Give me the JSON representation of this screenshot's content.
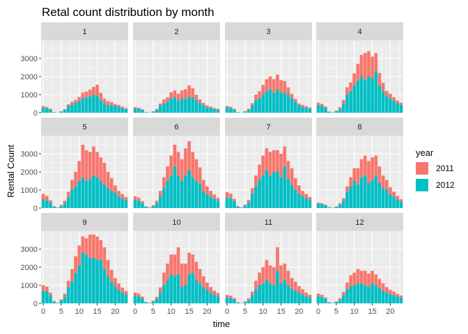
{
  "chart_data": {
    "type": "bar",
    "stacked": true,
    "title": "Retal count distribution by month",
    "xlabel": "time",
    "ylabel": "Rental Count",
    "x_range": [
      -0.6,
      23.6
    ],
    "ylim": [
      0,
      4000
    ],
    "x_ticks": [
      0,
      5,
      10,
      15,
      20
    ],
    "y_ticks": [
      0,
      1000,
      2000,
      3000
    ],
    "grid": true,
    "legend": {
      "title": "year",
      "position": "right"
    },
    "colors": {
      "2011": "#F8766D",
      "2012": "#00BFC4",
      "panel_bg": "#EBEBEB",
      "strip_bg": "#D9D9D9"
    },
    "facets": [
      {
        "label": "1",
        "hours": [
          0,
          1,
          2,
          3,
          4,
          5,
          6,
          7,
          8,
          9,
          10,
          11,
          12,
          13,
          14,
          15,
          16,
          17,
          18,
          19,
          20,
          21,
          22,
          23
        ],
        "series": [
          {
            "name": "2011",
            "values": [
              90,
              70,
              40,
              10,
              5,
              20,
              50,
              90,
              170,
              160,
              220,
              310,
              320,
              380,
              450,
              600,
              400,
              280,
              200,
              160,
              110,
              100,
              70,
              60
            ]
          },
          {
            "name": "2012",
            "values": [
              280,
              250,
              180,
              30,
              10,
              60,
              150,
              380,
              430,
              550,
              650,
              800,
              850,
              900,
              980,
              950,
              700,
              500,
              430,
              420,
              370,
              330,
              260,
              200
            ]
          }
        ]
      },
      {
        "label": "2",
        "hours": [
          0,
          1,
          2,
          3,
          4,
          5,
          6,
          7,
          8,
          9,
          10,
          11,
          12,
          13,
          14,
          15,
          16,
          17,
          18,
          19,
          20,
          21,
          22,
          23
        ],
        "series": [
          {
            "name": "2011",
            "values": [
              70,
              60,
              40,
              10,
              5,
              20,
              60,
              110,
              230,
              250,
              330,
              380,
              400,
              430,
              550,
              650,
              500,
              300,
              180,
              140,
              100,
              80,
              60,
              50
            ]
          },
          {
            "name": "2012",
            "values": [
              240,
              220,
              160,
              30,
              10,
              60,
              150,
              400,
              500,
              600,
              800,
              850,
              650,
              800,
              750,
              870,
              850,
              700,
              550,
              400,
              300,
              260,
              200,
              170
            ]
          }
        ]
      },
      {
        "label": "3",
        "hours": [
          0,
          1,
          2,
          3,
          4,
          5,
          6,
          7,
          8,
          9,
          10,
          11,
          12,
          13,
          14,
          15,
          16,
          17,
          18,
          19,
          20,
          21,
          22,
          23
        ],
        "series": [
          {
            "name": "2011",
            "values": [
              80,
              70,
              40,
              10,
              5,
              20,
              70,
              130,
              300,
              380,
              540,
              650,
              700,
              750,
              800,
              700,
              650,
              400,
              250,
              160,
              110,
              100,
              80,
              60
            ]
          },
          {
            "name": "2012",
            "values": [
              290,
              260,
              180,
              30,
              10,
              70,
              150,
              400,
              700,
              800,
              1000,
              1200,
              1300,
              1100,
              1300,
              1100,
              1100,
              1000,
              800,
              600,
              400,
              330,
              280,
              230
            ]
          }
        ]
      },
      {
        "label": "4",
        "hours": [
          0,
          1,
          2,
          3,
          4,
          5,
          6,
          7,
          8,
          9,
          10,
          11,
          12,
          13,
          14,
          15,
          16,
          17,
          18,
          19,
          20,
          21,
          22,
          23
        ],
        "series": [
          {
            "name": "2011",
            "values": [
              130,
              110,
              70,
              20,
              5,
              30,
              100,
              200,
              400,
              480,
              680,
              900,
              1200,
              1500,
              1400,
              1200,
              1000,
              700,
              450,
              300,
              250,
              200,
              150,
              120
            ]
          },
          {
            "name": "2012",
            "values": [
              420,
              380,
              270,
              50,
              20,
              90,
              200,
              500,
              1000,
              1200,
              1500,
              1800,
              2000,
              1800,
              2000,
              1900,
              2300,
              1500,
              1200,
              900,
              800,
              650,
              520,
              430
            ]
          }
        ]
      },
      {
        "label": "5",
        "hours": [
          0,
          1,
          2,
          3,
          4,
          5,
          6,
          7,
          8,
          9,
          10,
          11,
          12,
          13,
          14,
          15,
          16,
          17,
          18,
          19,
          20,
          21,
          22,
          23
        ],
        "series": [
          {
            "name": "2011",
            "values": [
              300,
              250,
              130,
              30,
              10,
              60,
              150,
              300,
              550,
              800,
              1100,
              1800,
              1700,
              1500,
              1600,
              1400,
              1300,
              1200,
              900,
              700,
              400,
              300,
              250,
              170
            ]
          },
          {
            "name": "2012",
            "values": [
              480,
              420,
              300,
              70,
              30,
              110,
              250,
              600,
              1000,
              1200,
              1500,
              1700,
              1500,
              1600,
              1800,
              1700,
              1500,
              1300,
              1100,
              950,
              850,
              650,
              520,
              430
            ]
          }
        ]
      },
      {
        "label": "6",
        "hours": [
          0,
          1,
          2,
          3,
          4,
          5,
          6,
          7,
          8,
          9,
          10,
          11,
          12,
          13,
          14,
          15,
          16,
          17,
          18,
          19,
          20,
          21,
          22,
          23
        ],
        "series": [
          {
            "name": "2011",
            "values": [
              200,
              180,
              100,
              30,
              10,
              60,
              150,
              300,
              600,
              800,
              1100,
              1200,
              1300,
              1200,
              1500,
              1600,
              1400,
              1200,
              900,
              650,
              450,
              300,
              230,
              160
            ]
          },
          {
            "name": "2012",
            "values": [
              450,
              400,
              280,
              70,
              30,
              100,
              250,
              650,
              1100,
              1500,
              1800,
              2300,
              1800,
              1500,
              1800,
              2100,
              1700,
              1500,
              1350,
              900,
              750,
              650,
              520,
              400
            ]
          }
        ]
      },
      {
        "label": "7",
        "hours": [
          0,
          1,
          2,
          3,
          4,
          5,
          6,
          7,
          8,
          9,
          10,
          11,
          12,
          13,
          14,
          15,
          16,
          17,
          18,
          19,
          20,
          21,
          22,
          23
        ],
        "series": [
          {
            "name": "2011",
            "values": [
              280,
              250,
              130,
              30,
              10,
              60,
              150,
              300,
              600,
              800,
              1100,
              1200,
              1300,
              1200,
              1200,
              1300,
              1100,
              1000,
              900,
              650,
              450,
              300,
              230,
              160
            ]
          },
          {
            "name": "2012",
            "values": [
              600,
              550,
              380,
              80,
              30,
              130,
              300,
              800,
              1200,
              1600,
              1800,
              2100,
              1800,
              2000,
              2000,
              1700,
              2300,
              1600,
              1300,
              1000,
              800,
              650,
              550,
              450
            ]
          }
        ]
      },
      {
        "label": "8",
        "hours": [
          0,
          1,
          2,
          3,
          4,
          5,
          6,
          7,
          8,
          9,
          10,
          11,
          12,
          13,
          14,
          15,
          16,
          17,
          18,
          19,
          20,
          21,
          22,
          23
        ],
        "series": [
          {
            "name": "2011",
            "values": [
              60,
              50,
              30,
              10,
              5,
              20,
              80,
              140,
              300,
              500,
              700,
              900,
              1000,
              1100,
              1200,
              1300,
              1100,
              900,
              700,
              550,
              400,
              300,
              200,
              140
            ]
          },
          {
            "name": "2012",
            "values": [
              240,
              220,
              160,
              40,
              15,
              70,
              180,
              400,
              900,
              1200,
              1500,
              1300,
              1700,
              1800,
              1400,
              1500,
              1800,
              1400,
              1100,
              1000,
              750,
              600,
              470,
              350
            ]
          }
        ]
      },
      {
        "label": "9",
        "hours": [
          0,
          1,
          2,
          3,
          4,
          5,
          6,
          7,
          8,
          9,
          10,
          11,
          12,
          13,
          14,
          15,
          16,
          17,
          18,
          19,
          20,
          21,
          22,
          23
        ],
        "series": [
          {
            "name": "2011",
            "values": [
              300,
              280,
              150,
              40,
              10,
              70,
              180,
              350,
              700,
              900,
              1100,
              900,
              900,
              1300,
              1300,
              1300,
              1100,
              1200,
              900,
              650,
              450,
              350,
              270,
              200
            ]
          },
          {
            "name": "2012",
            "values": [
              700,
              650,
              450,
              90,
              30,
              150,
              350,
              900,
              1200,
              1700,
              2100,
              2800,
              2700,
              2500,
              2500,
              2400,
              2400,
              1900,
              1500,
              1200,
              950,
              750,
              600,
              480
            ]
          }
        ]
      },
      {
        "label": "10",
        "hours": [
          0,
          1,
          2,
          3,
          4,
          5,
          6,
          7,
          8,
          9,
          10,
          11,
          12,
          13,
          14,
          15,
          16,
          17,
          18,
          19,
          20,
          21,
          22,
          23
        ],
        "series": [
          {
            "name": "2011",
            "values": [
              180,
              160,
              100,
              20,
              10,
              50,
              130,
              280,
              700,
              900,
              1100,
              1200,
              1500,
              1300,
              1200,
              1200,
              1000,
              1000,
              800,
              600,
              400,
              300,
              220,
              170
            ]
          },
          {
            "name": "2012",
            "values": [
              420,
              380,
              270,
              60,
              20,
              100,
              230,
              600,
              1000,
              1300,
              1600,
              1500,
              1600,
              900,
              1000,
              1600,
              1700,
              1300,
              1100,
              900,
              750,
              600,
              480,
              400
            ]
          }
        ]
      },
      {
        "label": "11",
        "hours": [
          0,
          1,
          2,
          3,
          4,
          5,
          6,
          7,
          8,
          9,
          10,
          11,
          12,
          13,
          14,
          15,
          16,
          17,
          18,
          19,
          20,
          21,
          22,
          23
        ],
        "series": [
          {
            "name": "2011",
            "values": [
              130,
              120,
              80,
              20,
              5,
              40,
              100,
              200,
              500,
              700,
              900,
              1100,
              1000,
              1000,
              1300,
              1000,
              900,
              800,
              600,
              500,
              350,
              280,
              200,
              150
            ]
          },
          {
            "name": "2012",
            "values": [
              330,
              300,
              210,
              40,
              15,
              70,
              180,
              450,
              750,
              1000,
              1100,
              1300,
              1100,
              1000,
              1800,
              1100,
              1300,
              1000,
              800,
              700,
              600,
              500,
              400,
              330
            ]
          }
        ]
      },
      {
        "label": "12",
        "hours": [
          0,
          1,
          2,
          3,
          4,
          5,
          6,
          7,
          8,
          9,
          10,
          11,
          12,
          13,
          14,
          15,
          16,
          17,
          18,
          19,
          20,
          21,
          22,
          23
        ],
        "series": [
          {
            "name": "2011",
            "values": [
              140,
              120,
              70,
              20,
              5,
              30,
              100,
              180,
              400,
              600,
              700,
              800,
              700,
              800,
              750,
              700,
              600,
              500,
              400,
              300,
              250,
              200,
              150,
              120
            ]
          },
          {
            "name": "2012",
            "values": [
              400,
              360,
              260,
              50,
              20,
              80,
              180,
              450,
              750,
              950,
              1000,
              1100,
              1100,
              1000,
              900,
              1100,
              1000,
              850,
              700,
              600,
              500,
              450,
              380,
              320
            ]
          }
        ]
      }
    ]
  }
}
